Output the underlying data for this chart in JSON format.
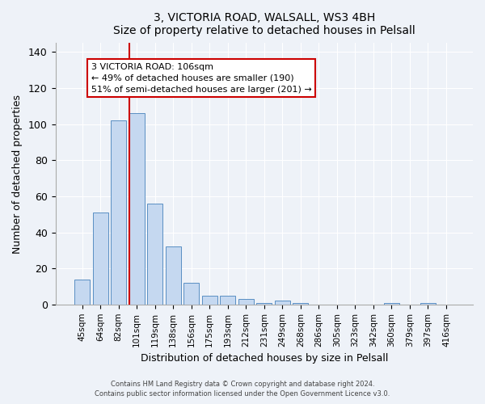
{
  "title1": "3, VICTORIA ROAD, WALSALL, WS3 4BH",
  "title2": "Size of property relative to detached houses in Pelsall",
  "xlabel": "Distribution of detached houses by size in Pelsall",
  "ylabel": "Number of detached properties",
  "bar_labels": [
    "45sqm",
    "64sqm",
    "82sqm",
    "101sqm",
    "119sqm",
    "138sqm",
    "156sqm",
    "175sqm",
    "193sqm",
    "212sqm",
    "231sqm",
    "249sqm",
    "268sqm",
    "286sqm",
    "305sqm",
    "323sqm",
    "342sqm",
    "360sqm",
    "379sqm",
    "397sqm",
    "416sqm"
  ],
  "bar_values": [
    14,
    51,
    102,
    106,
    56,
    32,
    12,
    5,
    5,
    3,
    1,
    2,
    1,
    0,
    0,
    0,
    0,
    1,
    0,
    1,
    0
  ],
  "bar_color": "#c5d8f0",
  "bar_edge_color": "#5a8fc3",
  "vline_color": "#cc0000",
  "vline_x": 3.5,
  "annotation_text": "3 VICTORIA ROAD: 106sqm\n← 49% of detached houses are smaller (190)\n51% of semi-detached houses are larger (201) →",
  "annotation_box_color": "#ffffff",
  "annotation_box_edge_color": "#cc0000",
  "ylim": [
    0,
    145
  ],
  "yticks": [
    0,
    20,
    40,
    60,
    80,
    100,
    120,
    140
  ],
  "footer1": "Contains HM Land Registry data © Crown copyright and database right 2024.",
  "footer2": "Contains public sector information licensed under the Open Government Licence v3.0.",
  "bg_color": "#eef2f8",
  "plot_bg_color": "#eef2f8"
}
